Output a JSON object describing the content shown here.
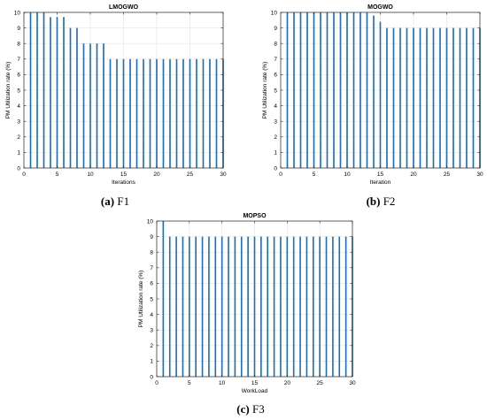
{
  "chart_data": [
    {
      "type": "bar",
      "title": "LMOGWO",
      "xlabel": "Iterations",
      "ylabel": "PM Utilization rate (%)",
      "xlim": [
        0,
        30
      ],
      "ylim": [
        0,
        10
      ],
      "xticks": [
        0,
        5,
        10,
        15,
        20,
        25,
        30
      ],
      "yticks": [
        0,
        1,
        2,
        3,
        4,
        5,
        6,
        7,
        8,
        9,
        10
      ],
      "grid": true,
      "x": [
        1,
        2,
        3,
        4,
        5,
        6,
        7,
        8,
        9,
        10,
        11,
        12,
        13,
        14,
        15,
        16,
        17,
        18,
        19,
        20,
        21,
        22,
        23,
        24,
        25,
        26,
        27,
        28,
        29,
        30
      ],
      "values": [
        10,
        10,
        10,
        9.7,
        9.7,
        9.7,
        9,
        9,
        8,
        8,
        8,
        8,
        7,
        7,
        7,
        7,
        7,
        7,
        7,
        7,
        7,
        7,
        7,
        7,
        7,
        7,
        7,
        7,
        7,
        7
      ],
      "color": "#1f6fb5"
    },
    {
      "type": "bar",
      "title": "MOGWO",
      "xlabel": "Iteration",
      "ylabel": "PM Utilization rate (%)",
      "xlim": [
        0,
        30
      ],
      "ylim": [
        0,
        10
      ],
      "xticks": [
        0,
        5,
        10,
        15,
        20,
        25,
        30
      ],
      "yticks": [
        0,
        1,
        2,
        3,
        4,
        5,
        6,
        7,
        8,
        9,
        10
      ],
      "grid": true,
      "x": [
        1,
        2,
        3,
        4,
        5,
        6,
        7,
        8,
        9,
        10,
        11,
        12,
        13,
        14,
        15,
        16,
        17,
        18,
        19,
        20,
        21,
        22,
        23,
        24,
        25,
        26,
        27,
        28,
        29,
        30
      ],
      "values": [
        10,
        10,
        10,
        10,
        10,
        10,
        10,
        10,
        10,
        10,
        10,
        10,
        10,
        9.8,
        9.4,
        9,
        9,
        9,
        9,
        9,
        9,
        9,
        9,
        9,
        9,
        9,
        9,
        9,
        9,
        9
      ],
      "color": "#1f6fb5"
    },
    {
      "type": "bar",
      "title": "MOPSO",
      "xlabel": "WorkLoad",
      "ylabel": "PM Utilization rate (%)",
      "xlim": [
        0,
        30
      ],
      "ylim": [
        0,
        10
      ],
      "xticks": [
        0,
        5,
        10,
        15,
        20,
        25,
        30
      ],
      "yticks": [
        0,
        1,
        2,
        3,
        4,
        5,
        6,
        7,
        8,
        9,
        10
      ],
      "grid": true,
      "x": [
        1,
        2,
        3,
        4,
        5,
        6,
        7,
        8,
        9,
        10,
        11,
        12,
        13,
        14,
        15,
        16,
        17,
        18,
        19,
        20,
        21,
        22,
        23,
        24,
        25,
        26,
        27,
        28,
        29,
        30
      ],
      "values": [
        10,
        9,
        9,
        9,
        9,
        9,
        9,
        9,
        9,
        9,
        9,
        9,
        9,
        9,
        9,
        9,
        9,
        9,
        9,
        9,
        9,
        9,
        9,
        9,
        9,
        9,
        9,
        9,
        9,
        9
      ],
      "color": "#1f6fb5"
    }
  ],
  "captions": [
    {
      "tag": "(a)",
      "text": "F1"
    },
    {
      "tag": "(b)",
      "text": "F2"
    },
    {
      "tag": "(c)",
      "text": "F3"
    }
  ]
}
